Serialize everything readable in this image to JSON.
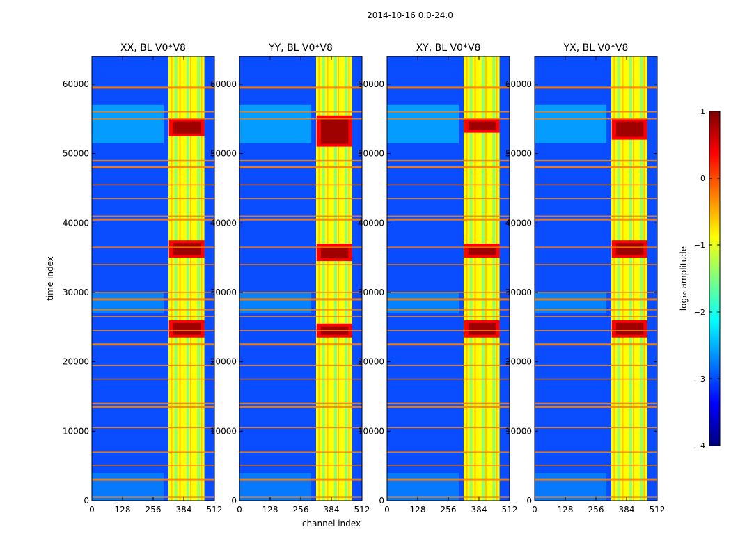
{
  "figure_title": "2014-10-16 0.0-24.0",
  "colors": {
    "jet": [
      "#00007f",
      "#0000ff",
      "#007fff",
      "#00ffff",
      "#7fff7f",
      "#ffff00",
      "#ff7f00",
      "#ff0000",
      "#7f0000"
    ]
  },
  "chart_data": [
    {
      "type": "heatmap",
      "title": "XX, BL V0*V8",
      "xlabel": "",
      "ylabel": "time index",
      "xlim": [
        0,
        512
      ],
      "ylim": [
        0,
        64000
      ],
      "xticks": [
        0,
        128,
        256,
        384,
        512
      ],
      "yticks": [
        0,
        10000,
        20000,
        30000,
        40000,
        50000,
        60000
      ],
      "strong_bands": [
        [
          52500,
          55000
        ],
        [
          35000,
          37500
        ],
        [
          23500,
          26000
        ]
      ]
    },
    {
      "type": "heatmap",
      "title": "YY, BL V0*V8",
      "xlabel": "channel index",
      "ylabel": "",
      "xlim": [
        0,
        512
      ],
      "ylim": [
        0,
        64000
      ],
      "xticks": [
        0,
        128,
        256,
        384,
        512
      ],
      "yticks": [
        0,
        10000,
        20000,
        30000,
        40000,
        50000,
        60000
      ],
      "strong_bands": [
        [
          51000,
          55500
        ],
        [
          34500,
          37000
        ],
        [
          23500,
          25500
        ]
      ]
    },
    {
      "type": "heatmap",
      "title": "XY, BL V0*V8",
      "xlabel": "",
      "ylabel": "",
      "xlim": [
        0,
        512
      ],
      "ylim": [
        0,
        64000
      ],
      "xticks": [
        0,
        128,
        256,
        384,
        512
      ],
      "yticks": [
        0,
        10000,
        20000,
        30000,
        40000,
        50000,
        60000
      ],
      "strong_bands": [
        [
          53000,
          55000
        ],
        [
          35000,
          37000
        ],
        [
          23500,
          26000
        ]
      ]
    },
    {
      "type": "heatmap",
      "title": "YX, BL V0*V8",
      "xlabel": "",
      "ylabel": "",
      "xlim": [
        0,
        512
      ],
      "ylim": [
        0,
        64000
      ],
      "xticks": [
        0,
        128,
        256,
        384,
        512
      ],
      "yticks": [
        0,
        10000,
        20000,
        30000,
        40000,
        50000,
        60000
      ],
      "strong_bands": [
        [
          52000,
          55000
        ],
        [
          35000,
          37500
        ],
        [
          23500,
          26000
        ]
      ]
    }
  ],
  "colorbar": {
    "label": "log₁₀ amplitude",
    "vmin": -4,
    "vmax": 1,
    "ticks": [
      1,
      0,
      -1,
      -2,
      -3,
      -4
    ],
    "tick_labels": [
      "1",
      "0",
      "−1",
      "−2",
      "−3",
      "−4"
    ]
  },
  "rfi_rows": [
    59500,
    56000,
    55000,
    49000,
    48000,
    45500,
    43500,
    41000,
    40500,
    36500,
    34000,
    30000,
    29000,
    27500,
    26500,
    24500,
    22500,
    19500,
    17500,
    14000,
    13500,
    10500,
    7000,
    5000,
    3000,
    500
  ]
}
